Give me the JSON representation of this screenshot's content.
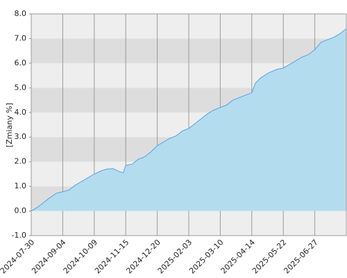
{
  "chart_data": {
    "type": "area",
    "y_label": "[Zmiany %]",
    "x": [
      0,
      5,
      10,
      15,
      20,
      25,
      30,
      35,
      40,
      45,
      50,
      55,
      60,
      65,
      70,
      73,
      75,
      80,
      85,
      90,
      95,
      100,
      105,
      110,
      115,
      120,
      125,
      130,
      135,
      140,
      145,
      150,
      155,
      160,
      165,
      170,
      175,
      178,
      182,
      188,
      195,
      200,
      205,
      210,
      215,
      220,
      225,
      230,
      235,
      240,
      245,
      250
    ],
    "values": [
      0,
      0.15,
      0.35,
      0.55,
      0.72,
      0.78,
      0.85,
      1.05,
      1.2,
      1.35,
      1.5,
      1.62,
      1.7,
      1.72,
      1.6,
      1.55,
      1.85,
      1.9,
      2.1,
      2.2,
      2.4,
      2.65,
      2.8,
      2.95,
      3.05,
      3.25,
      3.35,
      3.55,
      3.75,
      3.95,
      4.1,
      4.2,
      4.3,
      4.5,
      4.6,
      4.7,
      4.8,
      5.2,
      5.4,
      5.6,
      5.75,
      5.8,
      5.95,
      6.1,
      6.25,
      6.35,
      6.55,
      6.85,
      6.95,
      7.05,
      7.2,
      7.4
    ],
    "color": "#5b9fe0",
    "fill": "#b3dcee",
    "xlim": [
      0,
      250
    ],
    "xticks": [
      {
        "value": 0,
        "label": "2024-07-30"
      },
      {
        "value": 25,
        "label": "2024-09-04"
      },
      {
        "value": 50,
        "label": "2024-10-09"
      },
      {
        "value": 75,
        "label": "2024-11-15"
      },
      {
        "value": 100,
        "label": "2024-12-20"
      },
      {
        "value": 125,
        "label": "2025-02-03"
      },
      {
        "value": 150,
        "label": "2025-03-10"
      },
      {
        "value": 175,
        "label": "2025-04-14"
      },
      {
        "value": 200,
        "label": "2025-05-22"
      },
      {
        "value": 225,
        "label": "2025-06-27"
      }
    ],
    "ylim": [
      -1,
      8
    ],
    "yticks": [
      {
        "value": -1,
        "label": "-1.0"
      },
      {
        "value": 0,
        "label": "0.0"
      },
      {
        "value": 1,
        "label": "1.0"
      },
      {
        "value": 2,
        "label": "2.0"
      },
      {
        "value": 3,
        "label": "3.0"
      },
      {
        "value": 4,
        "label": "4.0"
      },
      {
        "value": 5,
        "label": "5.0"
      },
      {
        "value": 6,
        "label": "6.0"
      },
      {
        "value": 7,
        "label": "7.0"
      },
      {
        "value": 8,
        "label": "8.0"
      }
    ],
    "grid": true
  }
}
